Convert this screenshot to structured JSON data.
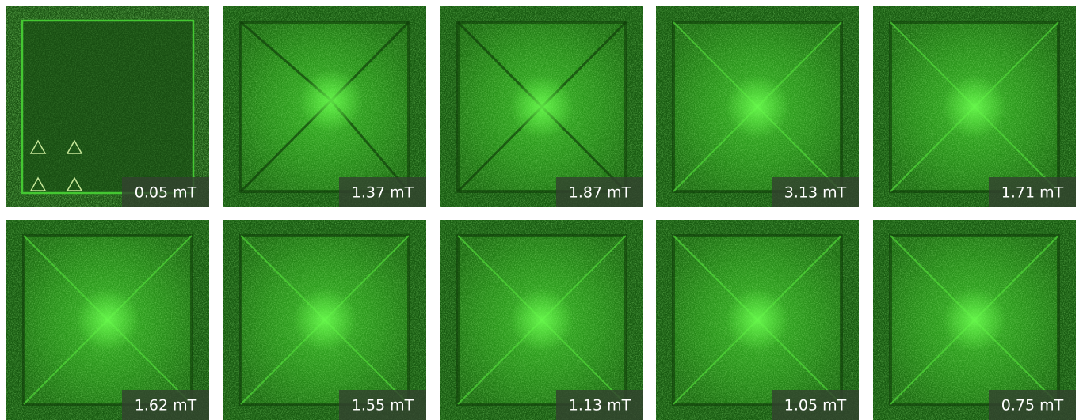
{
  "panels": [
    {
      "label": "0.05 mT"
    },
    {
      "label": "1.37 mT"
    },
    {
      "label": "1.87 mT"
    },
    {
      "label": "3.13 mT"
    },
    {
      "label": "1.71 mT"
    },
    {
      "label": "1.62 mT"
    },
    {
      "label": "1.55 mT"
    },
    {
      "label": "1.13 mT"
    },
    {
      "label": "1.05 mT"
    },
    {
      "label": "0.75 mT"
    }
  ]
}
